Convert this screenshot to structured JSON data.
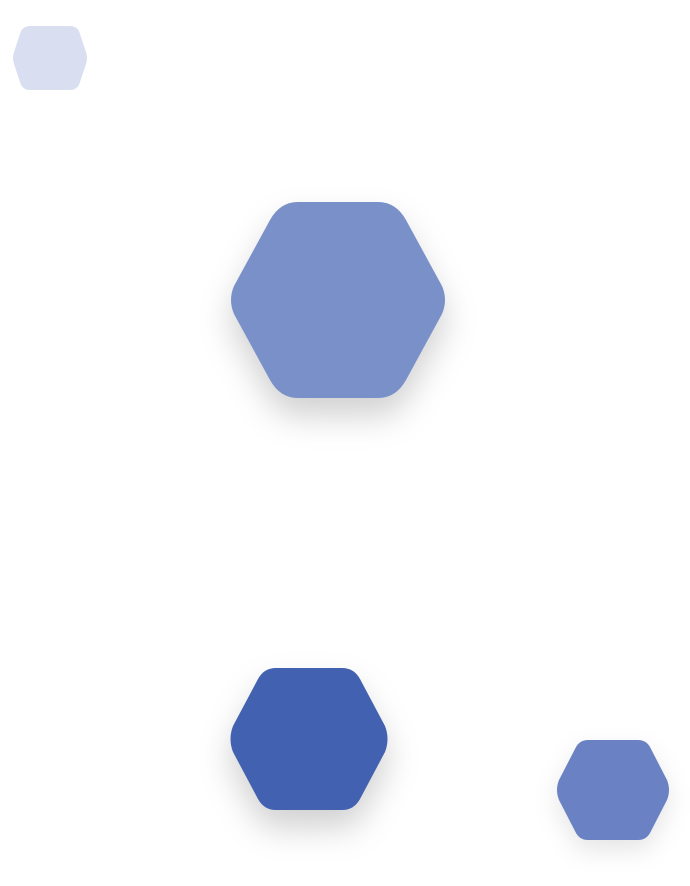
{
  "scene": {
    "background_color": "#ffffff",
    "shapes": [
      {
        "id": "hex-top-left-small",
        "name": "decorative-hexagon",
        "fill": "#d9dff0"
      },
      {
        "id": "hex-center-large",
        "name": "decorative-hexagon",
        "fill": "#7990c9"
      },
      {
        "id": "hex-bottom-center",
        "name": "decorative-hexagon",
        "fill": "#4361b1"
      },
      {
        "id": "hex-bottom-right",
        "name": "decorative-hexagon",
        "fill": "#6a82c4"
      }
    ]
  }
}
